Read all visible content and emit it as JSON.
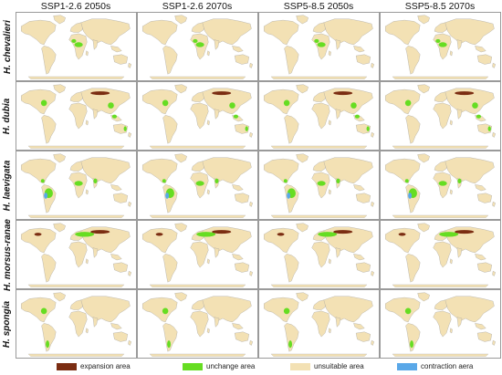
{
  "columns": [
    "SSP1-2.6 2050s",
    "SSP1-2.6 2070s",
    "SSP5-8.5 2050s",
    "SSP5-8.5 2070s"
  ],
  "rows": [
    {
      "species": "H. chevalieri",
      "regions": [
        {
          "region": "central-africa",
          "status": "unchange"
        },
        {
          "region": "west-africa",
          "status": "unchange"
        }
      ]
    },
    {
      "species": "H. dubia",
      "regions": [
        {
          "region": "east-china",
          "status": "unchange"
        },
        {
          "region": "siberia",
          "status": "expansion"
        },
        {
          "region": "eastern-north-america",
          "status": "unchange"
        },
        {
          "region": "southeast-asia",
          "status": "unchange"
        },
        {
          "region": "australia-east",
          "status": "unchange"
        }
      ]
    },
    {
      "species": "H. laevigata",
      "regions": [
        {
          "region": "south-america",
          "status": "unchange"
        },
        {
          "region": "central-america",
          "status": "unchange"
        },
        {
          "region": "central-africa",
          "status": "unchange"
        },
        {
          "region": "india",
          "status": "unchange"
        },
        {
          "region": "amazon-edge",
          "status": "contraction"
        }
      ]
    },
    {
      "species": "H. morsus-ranae",
      "regions": [
        {
          "region": "europe-russia",
          "status": "unchange"
        },
        {
          "region": "siberia",
          "status": "expansion"
        },
        {
          "region": "north-america",
          "status": "expansion"
        }
      ]
    },
    {
      "species": "H. spongia",
      "regions": [
        {
          "region": "eastern-north-america",
          "status": "unchange"
        },
        {
          "region": "southern-south-america",
          "status": "unchange"
        }
      ]
    }
  ],
  "legend": [
    {
      "key": "expansion",
      "label": "expansion area",
      "color": "#7b2d12"
    },
    {
      "key": "unchange",
      "label": "unchange area",
      "color": "#66dd22"
    },
    {
      "key": "unsuitable",
      "label": "unsuitable area",
      "color": "#f3e1b4"
    },
    {
      "key": "contraction",
      "label": "contraction aera",
      "color": "#5aa8e8"
    }
  ],
  "colors": {
    "land": "#f3e1b4",
    "ocean": "#ffffff",
    "border": "#9c9c9c"
  }
}
